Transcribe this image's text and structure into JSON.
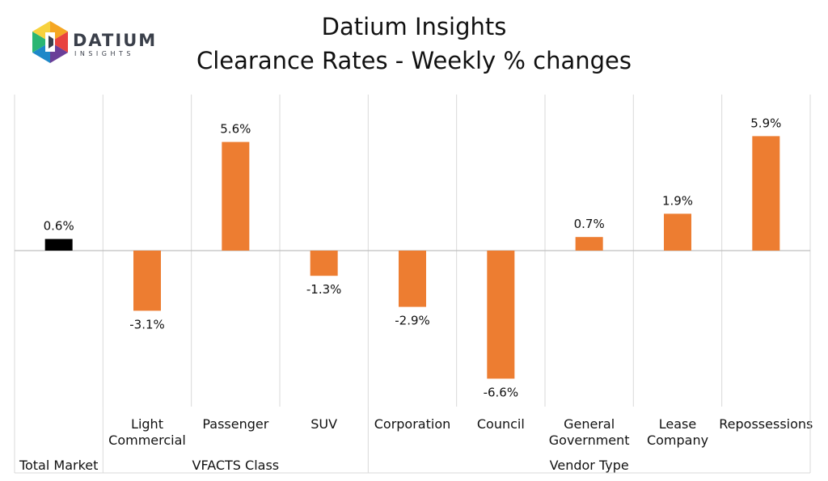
{
  "header": {
    "title_line1": "Datium Insights",
    "title_line2": "Clearance Rates - Weekly % changes"
  },
  "logo": {
    "wordmark": "DATIUM",
    "subtext": "INSIGHTS"
  },
  "colors": {
    "total_bar": "#000000",
    "bar": "#ED7D31",
    "grid": "#D9D9D9",
    "axis": "#BFBFBF"
  },
  "chart_data": {
    "type": "bar",
    "title": "Clearance Rates - Weekly % changes",
    "unit": "%",
    "ylim": [
      -9.5,
      8.5
    ],
    "categories": [
      {
        "label": [
          "Total Market"
        ],
        "value": 0.6,
        "value_label": "0.6%",
        "group": "Total Market",
        "highlight": true
      },
      {
        "label": [
          "Light",
          "Commercial"
        ],
        "value": -3.1,
        "value_label": "-3.1%",
        "group": "VFACTS Class"
      },
      {
        "label": [
          "Passenger"
        ],
        "value": 5.6,
        "value_label": "5.6%",
        "group": "VFACTS Class"
      },
      {
        "label": [
          "SUV"
        ],
        "value": -1.3,
        "value_label": "-1.3%",
        "group": "VFACTS Class"
      },
      {
        "label": [
          "Corporation"
        ],
        "value": -2.9,
        "value_label": "-2.9%",
        "group": "Vendor Type"
      },
      {
        "label": [
          "Council"
        ],
        "value": -6.6,
        "value_label": "-6.6%",
        "group": "Vendor Type"
      },
      {
        "label": [
          "General",
          "Government"
        ],
        "value": 0.7,
        "value_label": "0.7%",
        "group": "Vendor Type"
      },
      {
        "label": [
          "Lease",
          "Company"
        ],
        "value": 1.9,
        "value_label": "1.9%",
        "group": "Vendor Type"
      },
      {
        "label": [
          "Repossessions"
        ],
        "value": 5.9,
        "value_label": "5.9%",
        "group": "Vendor Type"
      }
    ],
    "groups": [
      {
        "name": "Total Market",
        "count": 1
      },
      {
        "name": "VFACTS Class",
        "count": 3
      },
      {
        "name": "Vendor Type",
        "count": 5
      }
    ]
  }
}
